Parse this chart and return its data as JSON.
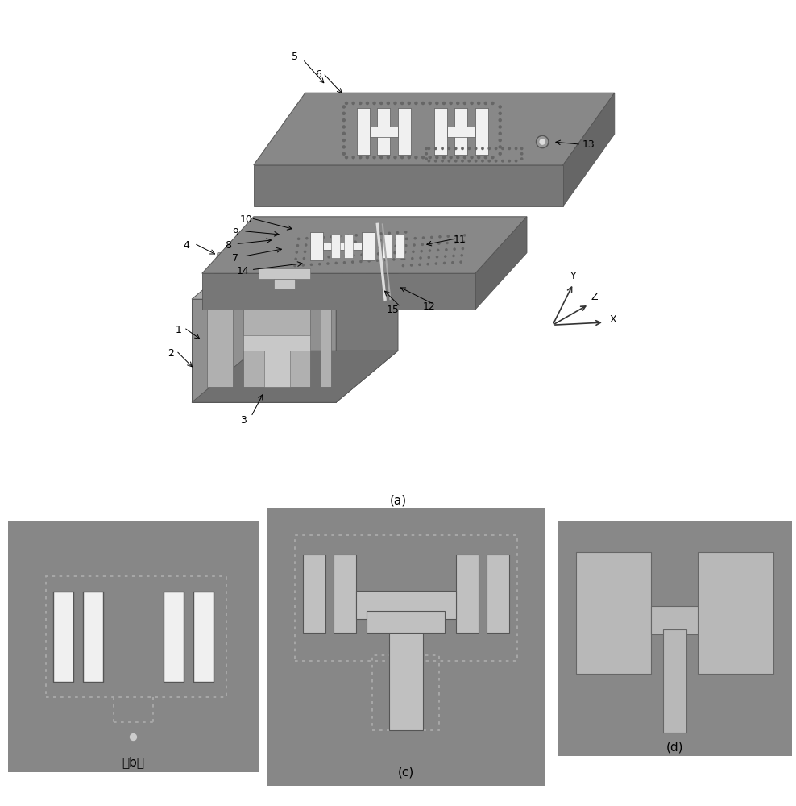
{
  "bg_color": "#ffffff",
  "panel_gray": "#878787",
  "board_gray": "#888888",
  "board_dark": "#666666",
  "board_side": "#777777",
  "cavity_front": "#909090",
  "cavity_top": "#aaaaaa",
  "cavity_right": "#787878",
  "cavity_slot": "#b0b0b0",
  "cavity_inner": "#c8c8c8",
  "white_elem": "#f0f0f0",
  "dot_c": "#666666",
  "dot_light": "#999999",
  "light_elem": "#c0c0c0",
  "label_a": "(a)",
  "label_b": "（b）",
  "label_c": "(c)",
  "label_d": "(d)"
}
